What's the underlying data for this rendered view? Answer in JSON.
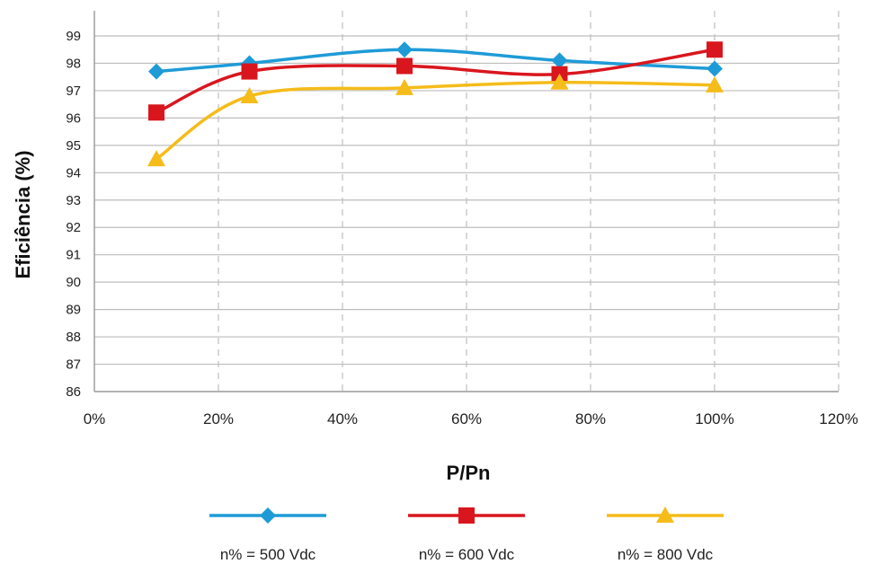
{
  "chart_data": {
    "type": "line",
    "title": "",
    "xlabel": "P/Pn",
    "ylabel": "Eficiência (%)",
    "xlim": [
      0,
      120
    ],
    "ylim": [
      86,
      99
    ],
    "x_ticks": [
      "0%",
      "20%",
      "40%",
      "60%",
      "80%",
      "100%",
      "120%"
    ],
    "x_tick_values": [
      0,
      20,
      40,
      60,
      80,
      100,
      120
    ],
    "y_ticks": [
      "86",
      "87",
      "88",
      "89",
      "90",
      "91",
      "92",
      "93",
      "94",
      "95",
      "96",
      "97",
      "98",
      "99"
    ],
    "y_tick_values": [
      86,
      87,
      88,
      89,
      90,
      91,
      92,
      93,
      94,
      95,
      96,
      97,
      98,
      99
    ],
    "grid": {
      "horizontal": true,
      "vertical_dashed": true
    },
    "legend_position": "bottom",
    "series": [
      {
        "name": "n% = 500 Vdc",
        "marker": "diamond",
        "color": "#1E9BD7",
        "x": [
          10,
          25,
          50,
          75,
          100
        ],
        "y": [
          97.7,
          98.0,
          98.5,
          98.1,
          97.8
        ]
      },
      {
        "name": "n% = 600 Vdc",
        "marker": "square",
        "color": "#D9161E",
        "x": [
          10,
          25,
          50,
          75,
          100
        ],
        "y": [
          96.2,
          97.7,
          97.9,
          97.6,
          98.5
        ]
      },
      {
        "name": "n% = 800 Vdc",
        "marker": "triangle",
        "color": "#F5BC1A",
        "x": [
          10,
          25,
          50,
          75,
          100
        ],
        "y": [
          94.5,
          96.8,
          97.1,
          97.3,
          97.2
        ]
      }
    ]
  }
}
